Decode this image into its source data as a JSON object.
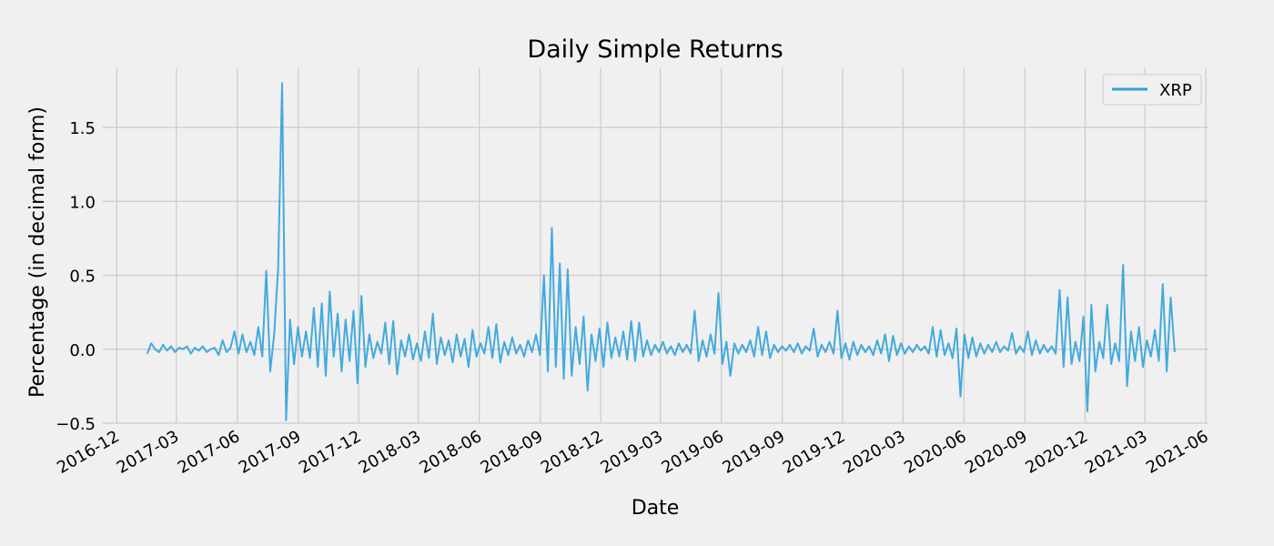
{
  "chart_data": {
    "type": "line",
    "title": "Daily Simple Returns",
    "xlabel": "Date",
    "ylabel": "Percentage (in decimal form)",
    "x_range": [
      "2016-11-10",
      "2021-06-05"
    ],
    "ylim": [
      -0.5,
      1.9
    ],
    "grid": true,
    "legend_position": "top-right",
    "x_ticks": [
      {
        "date": "2016-12-01",
        "label": "2016-12"
      },
      {
        "date": "2017-03-01",
        "label": "2017-03"
      },
      {
        "date": "2017-06-01",
        "label": "2017-06"
      },
      {
        "date": "2017-09-01",
        "label": "2017-09"
      },
      {
        "date": "2017-12-01",
        "label": "2017-12"
      },
      {
        "date": "2018-03-01",
        "label": "2018-03"
      },
      {
        "date": "2018-06-01",
        "label": "2018-06"
      },
      {
        "date": "2018-09-01",
        "label": "2018-09"
      },
      {
        "date": "2018-12-01",
        "label": "2018-12"
      },
      {
        "date": "2019-03-01",
        "label": "2019-03"
      },
      {
        "date": "2019-06-01",
        "label": "2019-06"
      },
      {
        "date": "2019-09-01",
        "label": "2019-09"
      },
      {
        "date": "2019-12-01",
        "label": "2019-12"
      },
      {
        "date": "2020-03-01",
        "label": "2020-03"
      },
      {
        "date": "2020-06-01",
        "label": "2020-06"
      },
      {
        "date": "2020-09-01",
        "label": "2020-09"
      },
      {
        "date": "2020-12-01",
        "label": "2020-12"
      },
      {
        "date": "2021-03-01",
        "label": "2021-03"
      },
      {
        "date": "2021-06-01",
        "label": "2021-06"
      }
    ],
    "y_ticks": [
      {
        "value": -0.5,
        "label": "−0.5"
      },
      {
        "value": 0.0,
        "label": "0.0"
      },
      {
        "value": 0.5,
        "label": "0.5"
      },
      {
        "value": 1.0,
        "label": "1.0"
      },
      {
        "value": 1.5,
        "label": "1.5"
      }
    ],
    "series": [
      {
        "name": "XRP",
        "color": "#30a2da",
        "start_date": "2017-01-16",
        "end_date": "2021-04-15",
        "values": [
          -0.03,
          0.04,
          0.0,
          -0.02,
          0.03,
          -0.01,
          0.02,
          -0.02,
          0.01,
          0.0,
          0.02,
          -0.03,
          0.01,
          -0.01,
          0.02,
          -0.02,
          0.0,
          0.01,
          -0.04,
          0.06,
          -0.02,
          0.01,
          0.12,
          -0.03,
          0.1,
          -0.02,
          0.05,
          -0.04,
          0.15,
          -0.05,
          0.53,
          -0.15,
          0.1,
          0.55,
          1.8,
          -0.48,
          0.2,
          -0.1,
          0.15,
          -0.05,
          0.12,
          -0.06,
          0.28,
          -0.12,
          0.31,
          -0.18,
          0.39,
          -0.05,
          0.24,
          -0.15,
          0.2,
          -0.08,
          0.26,
          -0.23,
          0.36,
          -0.12,
          0.1,
          -0.06,
          0.05,
          -0.03,
          0.18,
          -0.1,
          0.19,
          -0.17,
          0.06,
          -0.05,
          0.1,
          -0.07,
          0.04,
          -0.08,
          0.12,
          -0.06,
          0.24,
          -0.1,
          0.08,
          -0.04,
          0.06,
          -0.09,
          0.1,
          -0.05,
          0.07,
          -0.12,
          0.13,
          -0.05,
          0.04,
          -0.03,
          0.15,
          -0.06,
          0.17,
          -0.09,
          0.05,
          -0.04,
          0.08,
          -0.03,
          0.03,
          -0.05,
          0.06,
          -0.02,
          0.1,
          -0.04,
          0.5,
          -0.15,
          0.82,
          -0.12,
          0.58,
          -0.2,
          0.54,
          -0.18,
          0.15,
          -0.1,
          0.22,
          -0.28,
          0.1,
          -0.08,
          0.14,
          -0.12,
          0.18,
          -0.06,
          0.08,
          -0.05,
          0.12,
          -0.07,
          0.19,
          -0.08,
          0.18,
          -0.05,
          0.06,
          -0.04,
          0.03,
          -0.02,
          0.05,
          -0.03,
          0.02,
          -0.04,
          0.04,
          -0.02,
          0.03,
          -0.03,
          0.26,
          -0.08,
          0.06,
          -0.05,
          0.1,
          -0.03,
          0.38,
          -0.1,
          0.05,
          -0.18,
          0.04,
          -0.03,
          0.03,
          -0.02,
          0.06,
          -0.05,
          0.15,
          -0.04,
          0.12,
          -0.06,
          0.03,
          -0.02,
          0.02,
          -0.01,
          0.03,
          -0.02,
          0.04,
          -0.03,
          0.02,
          -0.01,
          0.14,
          -0.05,
          0.03,
          -0.02,
          0.05,
          -0.03,
          0.26,
          -0.06,
          0.04,
          -0.07,
          0.05,
          -0.04,
          0.03,
          -0.02,
          0.02,
          -0.04,
          0.06,
          -0.03,
          0.1,
          -0.08,
          0.09,
          -0.04,
          0.04,
          -0.03,
          0.02,
          -0.02,
          0.03,
          -0.01,
          0.02,
          -0.03,
          0.15,
          -0.05,
          0.13,
          -0.04,
          0.04,
          -0.06,
          0.14,
          -0.32,
          0.1,
          -0.06,
          0.08,
          -0.05,
          0.04,
          -0.03,
          0.03,
          -0.02,
          0.05,
          -0.02,
          0.02,
          -0.01,
          0.11,
          -0.03,
          0.02,
          -0.02,
          0.12,
          -0.04,
          0.06,
          -0.03,
          0.03,
          -0.02,
          0.02,
          -0.03,
          0.4,
          -0.12,
          0.35,
          -0.1,
          0.05,
          -0.08,
          0.22,
          -0.42,
          0.3,
          -0.15,
          0.05,
          -0.06,
          0.3,
          -0.1,
          0.04,
          -0.08,
          0.57,
          -0.25,
          0.12,
          -0.08,
          0.15,
          -0.12,
          0.06,
          -0.05,
          0.13,
          -0.08,
          0.44,
          -0.15,
          0.35,
          -0.02
        ]
      }
    ]
  }
}
